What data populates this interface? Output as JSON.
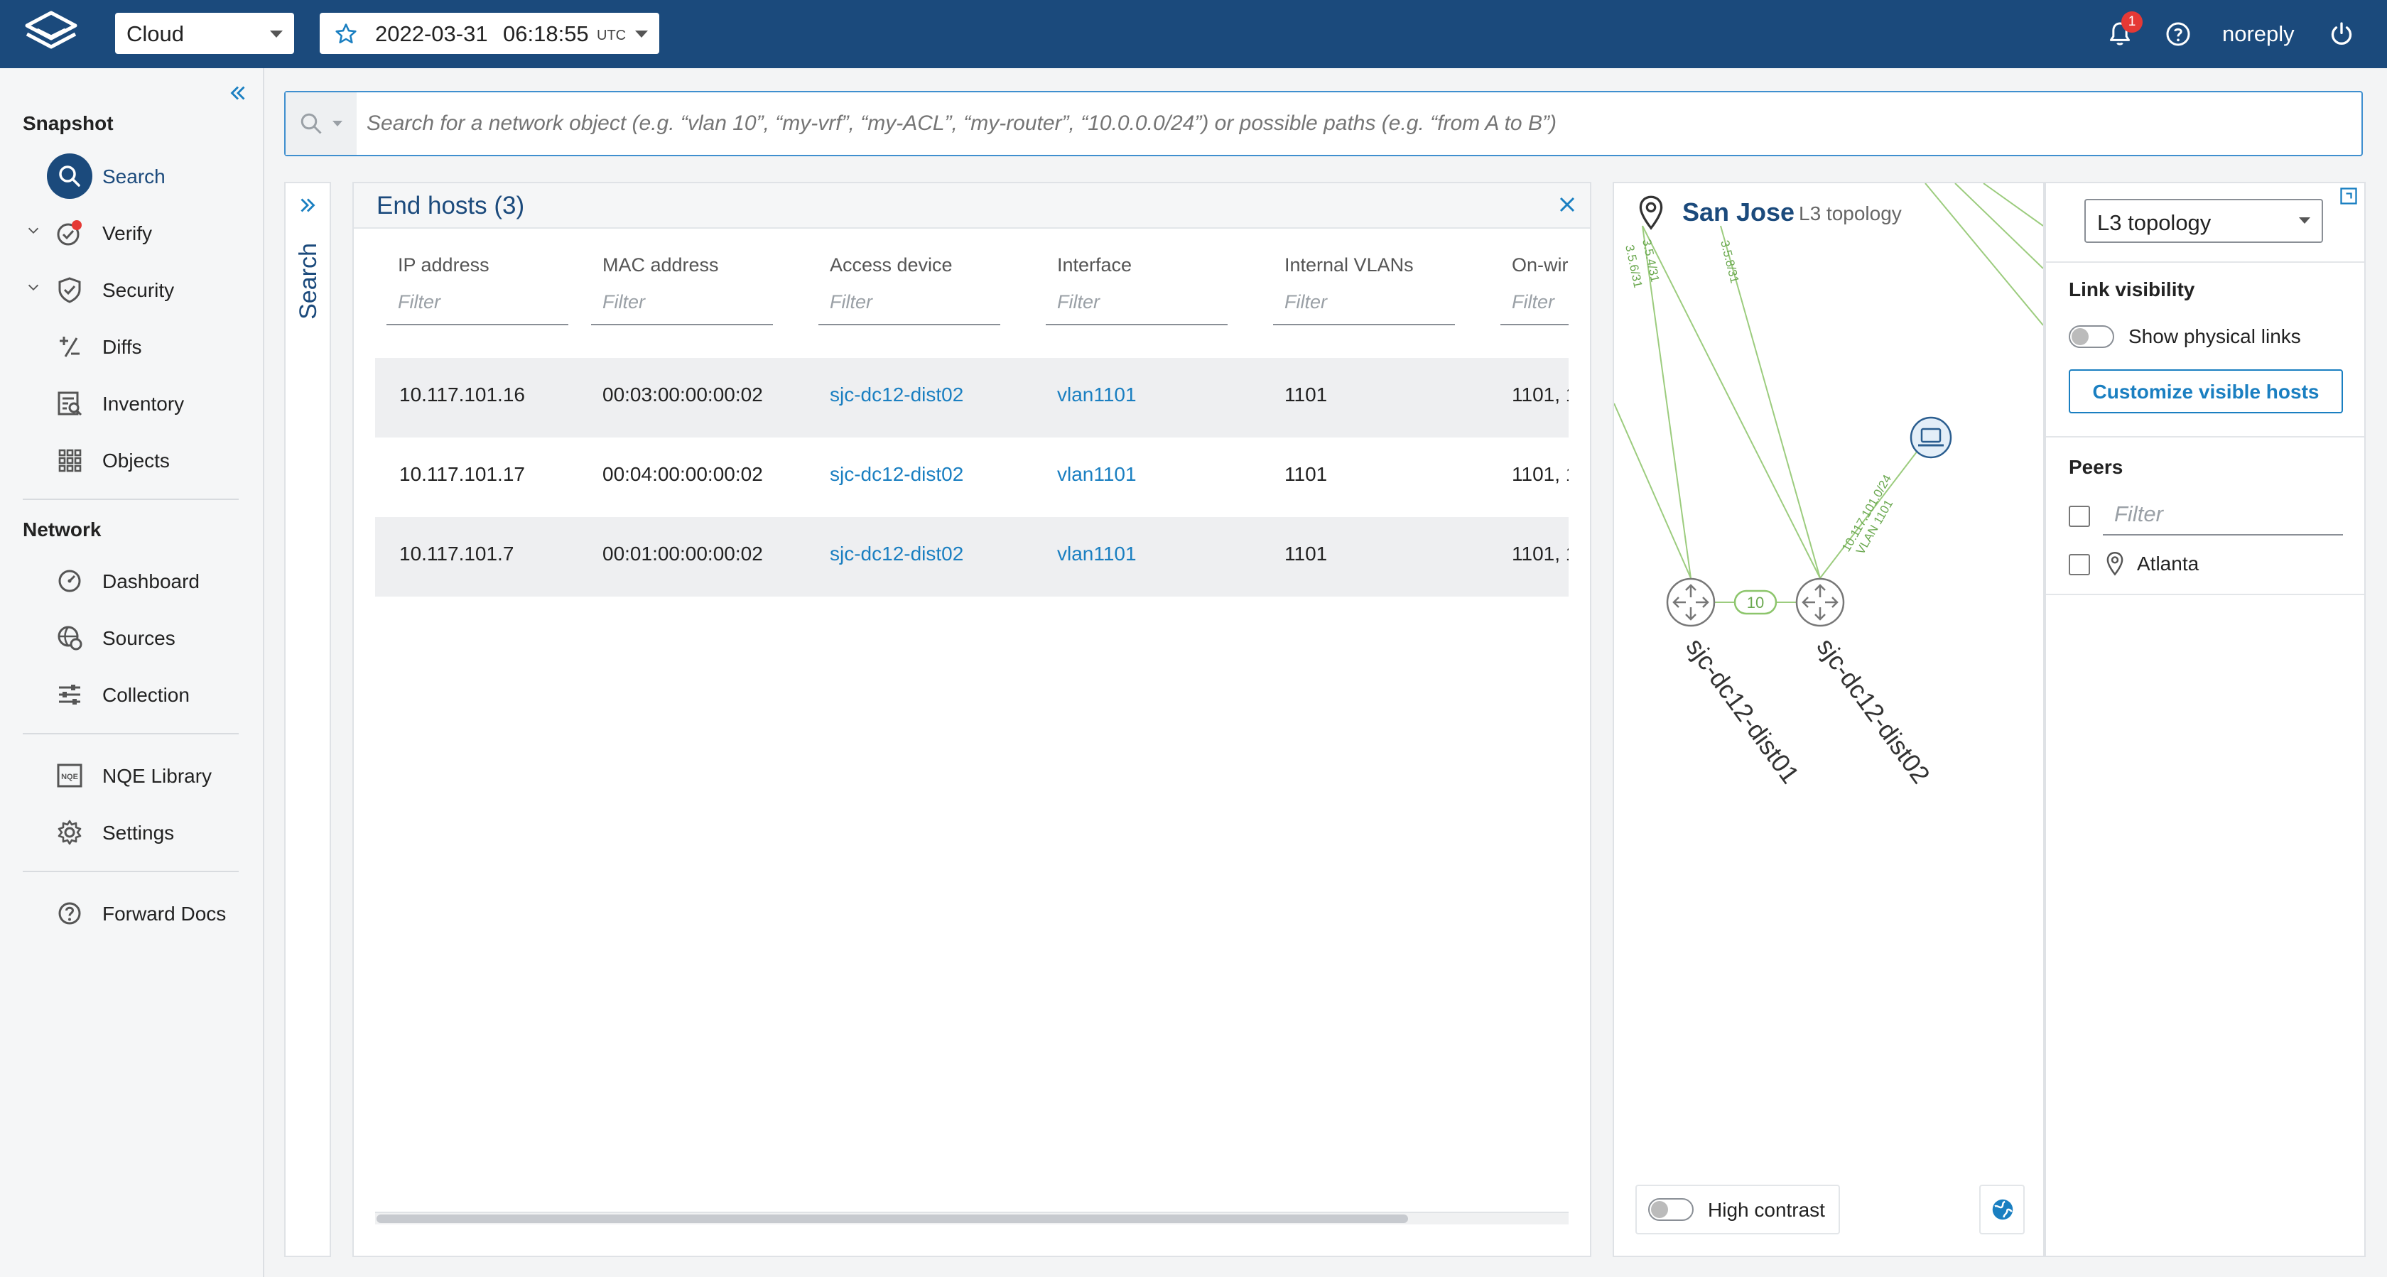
{
  "topbar": {
    "workspace": "Cloud",
    "snapshot_date": "2022-03-31",
    "snapshot_time": "06:18:55",
    "snapshot_tz": "UTC",
    "notification_count": "1",
    "user": "noreply"
  },
  "sidebar": {
    "snapshot_heading": "Snapshot",
    "network_heading": "Network",
    "items": {
      "search": "Search",
      "verify": "Verify",
      "security": "Security",
      "diffs": "Diffs",
      "inventory": "Inventory",
      "objects": "Objects",
      "dashboard": "Dashboard",
      "sources": "Sources",
      "collection": "Collection",
      "nqe_library": "NQE Library",
      "settings": "Settings",
      "forward_docs": "Forward Docs"
    }
  },
  "search": {
    "placeholder": "Search for a network object (e.g. “vlan 10”, “my-vrf”, “my-ACL”, “my-router”, “10.0.0.0/24”) or possible paths (e.g. “from A to B”)",
    "vertical_tab": "Search"
  },
  "endhosts": {
    "title": "End hosts (3)",
    "columns": [
      "IP address",
      "MAC address",
      "Access device",
      "Interface",
      "Internal VLANs",
      "On-wir"
    ],
    "filter_placeholder": "Filter",
    "rows": [
      {
        "ip": "10.117.101.16",
        "mac": "00:03:00:00:00:02",
        "device": "sjc-dc12-dist02",
        "iface": "vlan1101",
        "vlans": "1101",
        "onwire": "1101, 1"
      },
      {
        "ip": "10.117.101.17",
        "mac": "00:04:00:00:00:02",
        "device": "sjc-dc12-dist02",
        "iface": "vlan1101",
        "vlans": "1101",
        "onwire": "1101, 1"
      },
      {
        "ip": "10.117.101.7",
        "mac": "00:01:00:00:00:02",
        "device": "sjc-dc12-dist02",
        "iface": "vlan1101",
        "vlans": "1101",
        "onwire": "1101, 1"
      }
    ]
  },
  "topology": {
    "site": "San Jose",
    "subtitle": "L3 topology",
    "link_labels": [
      "3.5.4/31",
      "3.5.6/31",
      "3.5.8/31",
      "10.117.101.0/24",
      "VLAN 1101"
    ],
    "edge_badge": "10",
    "devices": [
      "sjc-dc12-dist01",
      "sjc-dc12-dist02"
    ],
    "high_contrast": "High contrast"
  },
  "rightpanel": {
    "view_select": "L3 topology",
    "link_visibility": "Link visibility",
    "show_physical": "Show physical links",
    "customize": "Customize visible hosts",
    "peers": "Peers",
    "peers_filter": "Filter",
    "peer_items": [
      "Atlanta"
    ]
  },
  "colors": {
    "topbar": "#1b4a7c",
    "accent": "#1a7fc1",
    "link_green": "#8cc56b",
    "badge_red": "#e53935"
  }
}
